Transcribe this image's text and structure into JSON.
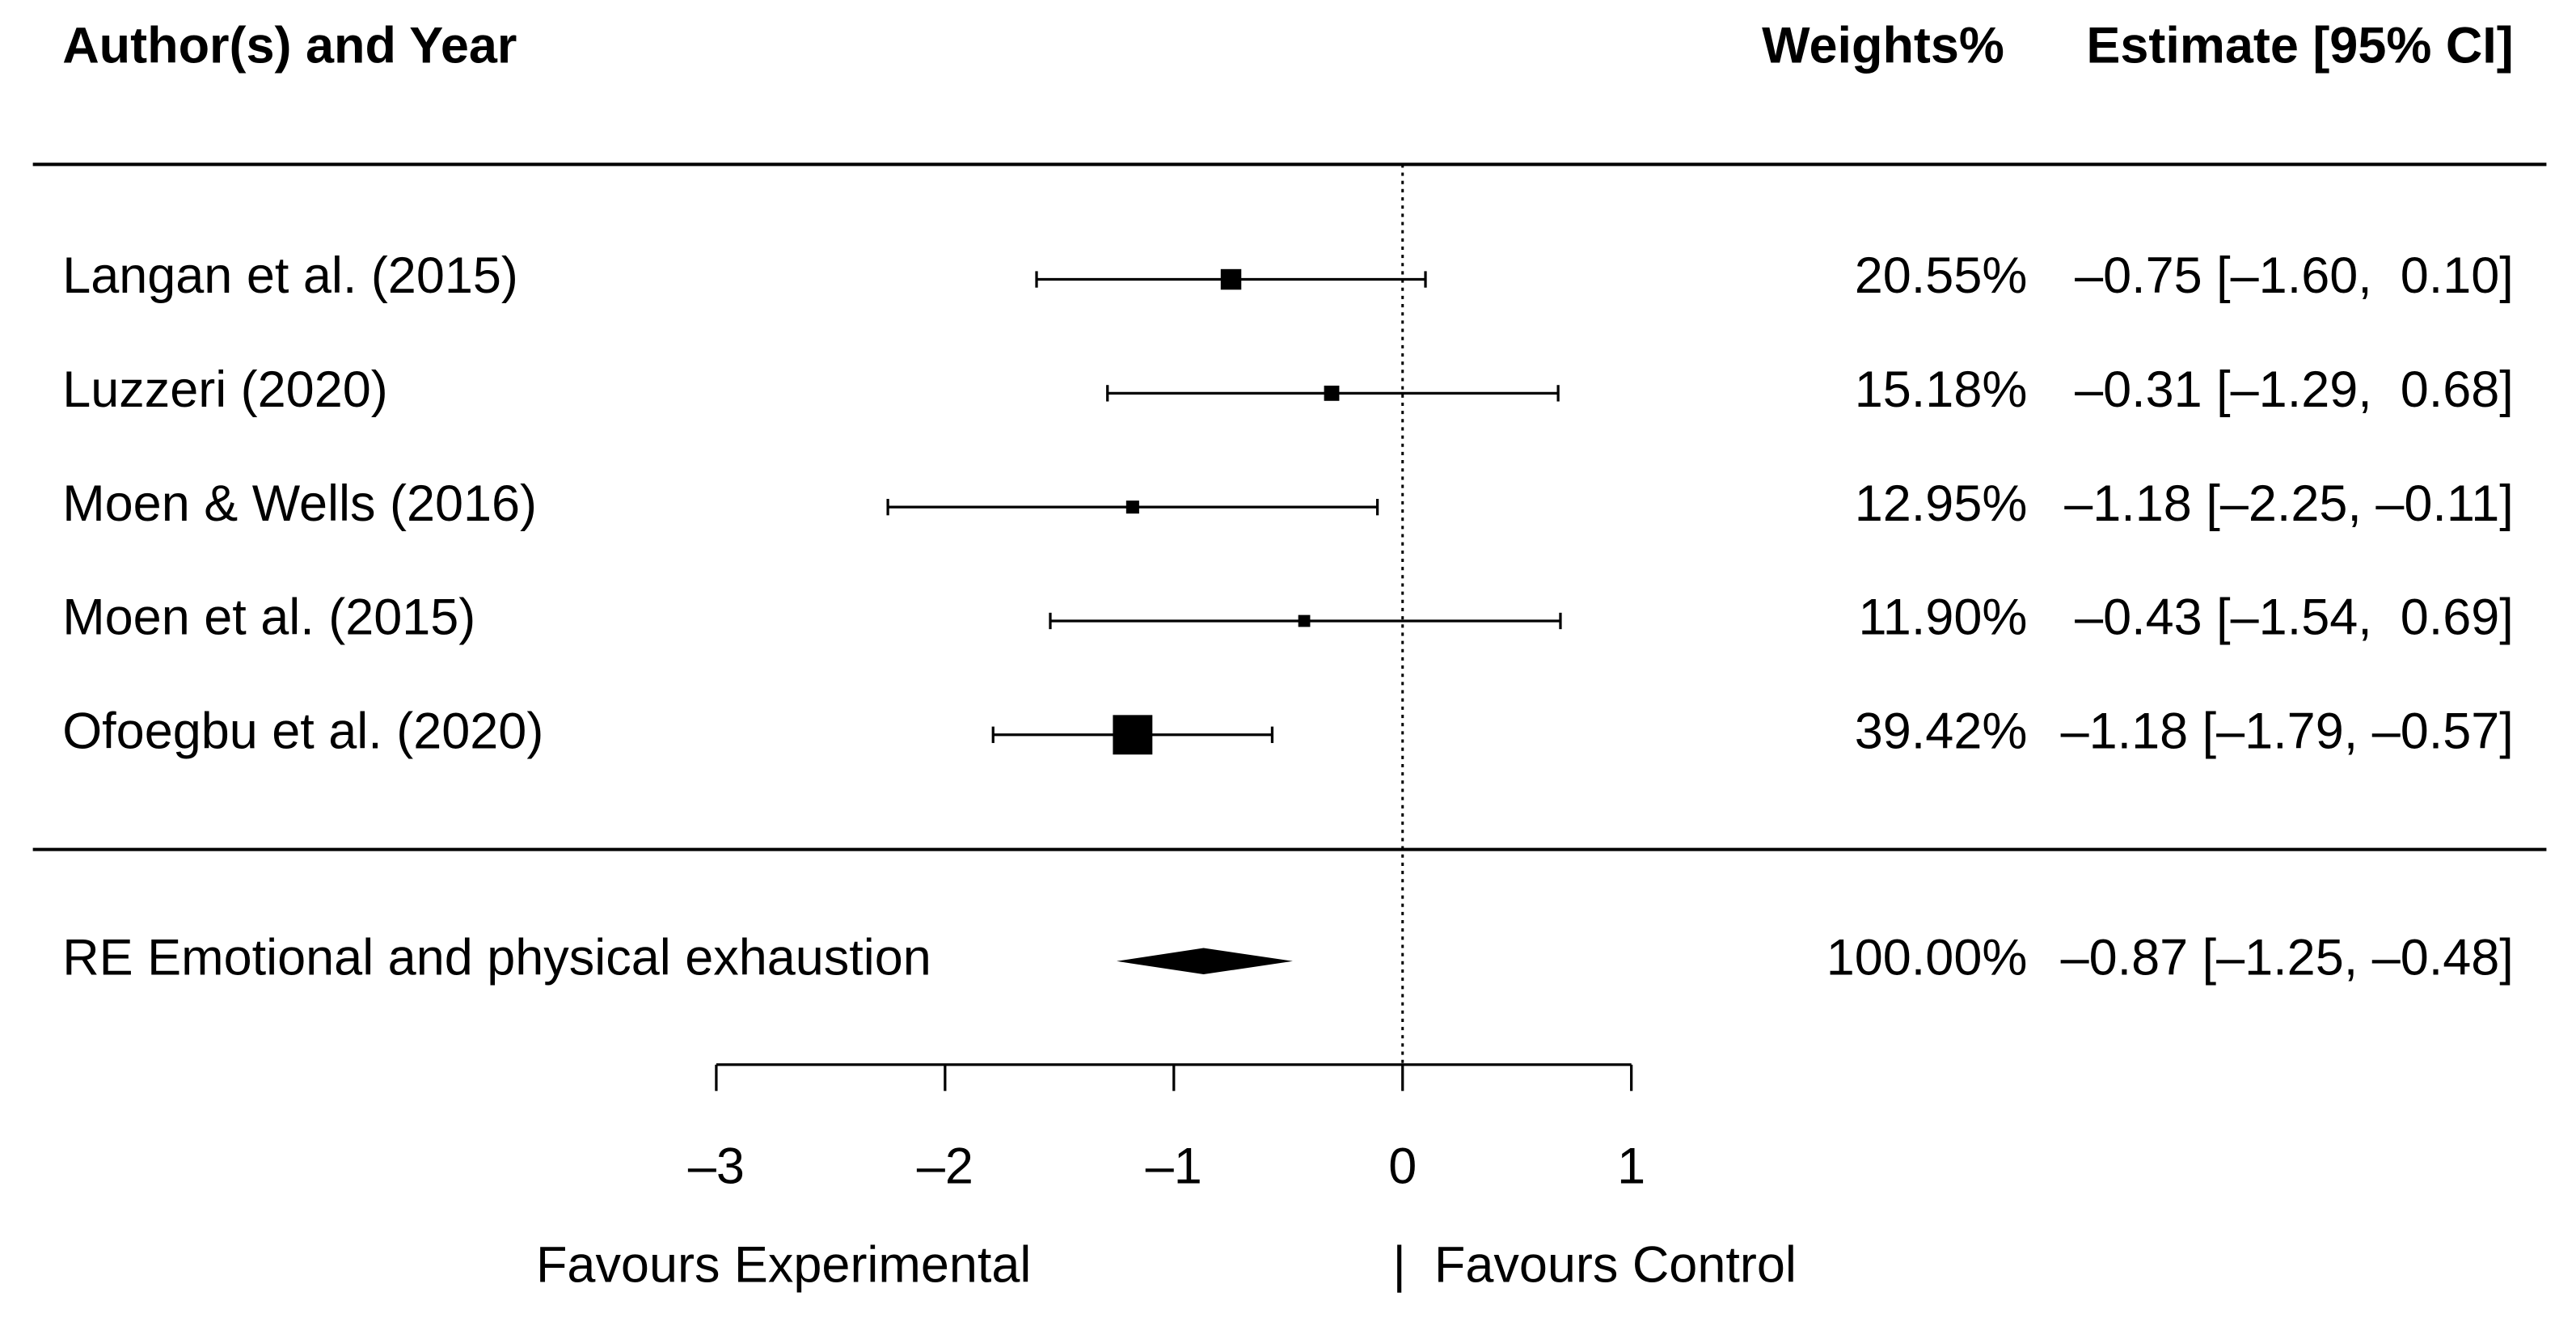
{
  "chart_data": {
    "type": "forest",
    "headers": {
      "study": "Author(s) and Year",
      "weight": "Weights%",
      "estimate": "Estimate [95% CI]"
    },
    "categories": [
      "Langan et al. (2015)",
      "Luzzeri (2020)",
      "Moen & Wells (2016)",
      "Moen et al. (2015)",
      "Ofoegbu et al. (2020)"
    ],
    "values": [
      -0.75,
      -0.31,
      -1.18,
      -0.43,
      -1.18
    ],
    "lower": [
      -1.6,
      -1.29,
      -2.25,
      -1.54,
      -1.79
    ],
    "upper": [
      0.1,
      0.68,
      -0.11,
      0.69,
      -0.57
    ],
    "value_labels": [
      "–0.75 [–1.60,  0.10]",
      "–0.31 [–1.29,  0.68]",
      "–1.18 [–2.25, –0.11]",
      "–0.43 [–1.54,  0.69]",
      "–1.18 [–1.79, –0.57]"
    ],
    "weights": [
      20.55,
      15.18,
      12.95,
      11.9,
      39.42
    ],
    "weight_labels": [
      "20.55%",
      "15.18%",
      "12.95%",
      "11.90%",
      "39.42%"
    ],
    "summary": {
      "name": "RE Emotional and physical exhaustion",
      "value": -0.87,
      "lower": -1.25,
      "upper": -0.48,
      "value_label": "–0.87 [–1.25, –0.48]",
      "weight": 100.0,
      "weight_label": "100.00%"
    },
    "xlim": [
      -3,
      1
    ],
    "xticks": [
      {
        "value": -3,
        "label": "–3"
      },
      {
        "value": -2,
        "label": "–2"
      },
      {
        "value": -1,
        "label": "–1"
      },
      0,
      1
    ],
    "x_label_left": "Favours Experimental",
    "x_label_right": "|  Favours Control",
    "color": "#000000"
  }
}
